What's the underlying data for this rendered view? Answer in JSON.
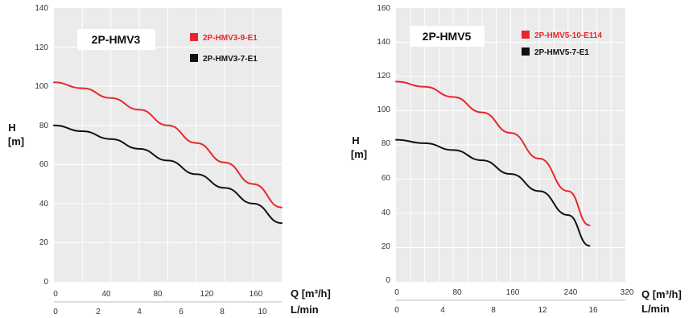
{
  "chart_data": [
    {
      "type": "line",
      "title": "2P-HMV3",
      "ylabel_top": "H",
      "ylabel_bottom": "[m]",
      "xlabel_primary": "Q [m³/h]",
      "xlabel_secondary": "L/min",
      "ylim": [
        0,
        140
      ],
      "y_ticks": [
        "0",
        "20",
        "40",
        "60",
        "80",
        "100",
        "120",
        "140"
      ],
      "xlim": [
        0,
        160
      ],
      "x_ticks": [
        "0",
        "40",
        "80",
        "120",
        "160"
      ],
      "x2lim": [
        0,
        10
      ],
      "x2_ticks": [
        "0",
        "2",
        "4",
        "6",
        "8",
        "10"
      ],
      "grid": true,
      "series": [
        {
          "name": "2P-HMV3-9-E1",
          "color": "#e8262d",
          "x": [
            0,
            20,
            40,
            60,
            80,
            100,
            120,
            140,
            160
          ],
          "y": [
            102,
            99,
            94,
            88,
            80,
            71,
            61,
            50,
            38
          ]
        },
        {
          "name": "2P-HMV3-7-E1",
          "color": "#111111",
          "x": [
            0,
            20,
            40,
            60,
            80,
            100,
            120,
            140,
            160
          ],
          "y": [
            80,
            77,
            73,
            68,
            62,
            55,
            48,
            40,
            30
          ]
        }
      ]
    },
    {
      "type": "line",
      "title": "2P-HMV5",
      "ylabel_top": "H",
      "ylabel_bottom": "[m]",
      "xlabel_primary": "Q [m³/h]",
      "xlabel_secondary": "L/min",
      "ylim": [
        0,
        160
      ],
      "y_ticks": [
        "0",
        "20",
        "40",
        "60",
        "80",
        "100",
        "120",
        "140",
        "160"
      ],
      "xlim": [
        0,
        320
      ],
      "x_ticks": [
        "0",
        "80",
        "160",
        "240",
        "320"
      ],
      "x2lim": [
        0,
        20
      ],
      "x2_ticks": [
        "0",
        "4",
        "8",
        "12",
        "16"
      ],
      "grid": true,
      "series": [
        {
          "name": "2P-HMV5-10-E114",
          "color": "#e8262d",
          "x": [
            0,
            40,
            80,
            120,
            160,
            200,
            240,
            270
          ],
          "y": [
            117,
            114,
            108,
            99,
            87,
            72,
            53,
            33
          ]
        },
        {
          "name": "2P-HMV5-7-E1",
          "color": "#111111",
          "x": [
            0,
            40,
            80,
            120,
            160,
            200,
            240,
            270
          ],
          "y": [
            83,
            81,
            77,
            71,
            63,
            53,
            39,
            21
          ]
        }
      ]
    }
  ]
}
